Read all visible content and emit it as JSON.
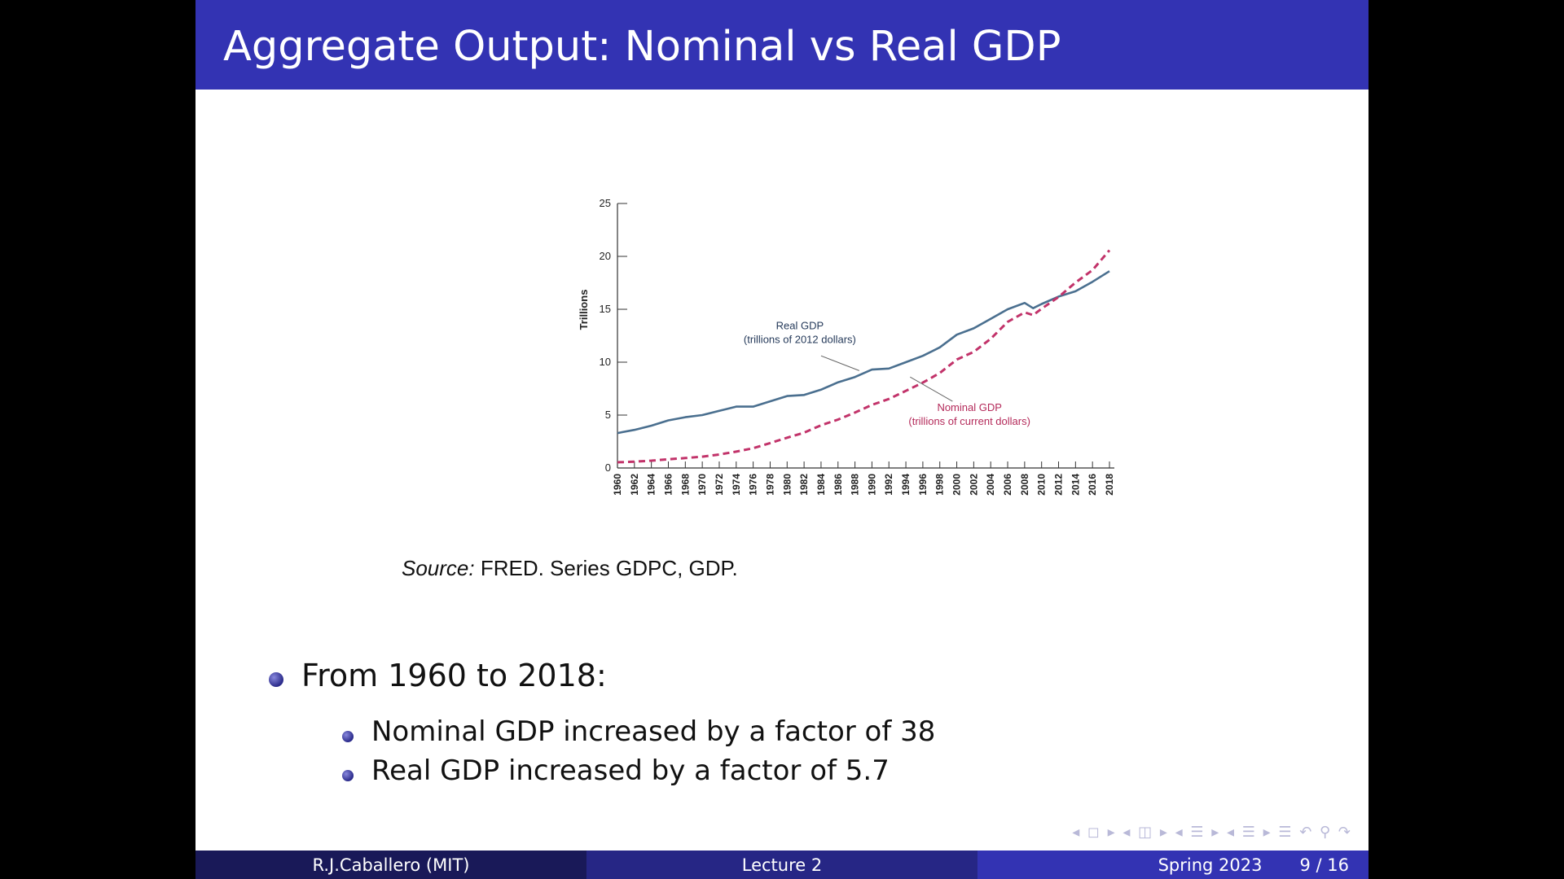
{
  "slide": {
    "title": "Aggregate Output: Nominal vs Real GDP",
    "source_label": "Source:",
    "source_text": " FRED. Series GDPC, GDP.",
    "bullets": {
      "main": "From 1960 to 2018:",
      "sub1": "Nominal GDP increased by a factor of 38",
      "sub2": "Real GDP increased by a factor of 5.7"
    }
  },
  "footer": {
    "author": "R.J.Caballero (MIT)",
    "lecture": "Lecture 2",
    "term": "Spring 2023",
    "page": "9 / 16"
  },
  "navbar": {
    "icons": "◂ ◻ ▸   ◂ ◫ ▸   ◂ ☰ ▸   ◂ ☰ ▸   ☰   ↶ ⚲ ↷"
  },
  "chart_data": {
    "type": "line",
    "ylabel": "Trillions",
    "ylim": [
      0,
      25
    ],
    "yticks": [
      0,
      5,
      10,
      15,
      20,
      25
    ],
    "xlim": [
      1960,
      2018
    ],
    "xticks": [
      1960,
      1962,
      1964,
      1966,
      1968,
      1970,
      1972,
      1974,
      1976,
      1978,
      1980,
      1982,
      1984,
      1986,
      1988,
      1990,
      1992,
      1994,
      1996,
      1998,
      2000,
      2002,
      2004,
      2006,
      2008,
      2010,
      2012,
      2014,
      2016,
      2018
    ],
    "series": [
      {
        "name": "Real GDP",
        "label_lines": [
          "Real GDP",
          "(trillions of 2012 dollars)"
        ],
        "color": "#4a6f8f",
        "style": "solid",
        "x": [
          1960,
          1962,
          1964,
          1966,
          1968,
          1970,
          1972,
          1974,
          1976,
          1978,
          1980,
          1982,
          1984,
          1986,
          1988,
          1990,
          1992,
          1994,
          1996,
          1998,
          2000,
          2002,
          2004,
          2006,
          2008,
          2009,
          2010,
          2012,
          2014,
          2016,
          2018
        ],
        "values": [
          3.3,
          3.6,
          4.0,
          4.5,
          4.8,
          5.0,
          5.4,
          5.8,
          5.8,
          6.3,
          6.8,
          6.9,
          7.4,
          8.1,
          8.6,
          9.3,
          9.4,
          10.0,
          10.6,
          11.4,
          12.6,
          13.2,
          14.1,
          15.0,
          15.6,
          15.1,
          15.5,
          16.2,
          16.7,
          17.6,
          18.6
        ]
      },
      {
        "name": "Nominal GDP",
        "label_lines": [
          "Nominal GDP",
          "(trillions of current dollars)"
        ],
        "color": "#c2336a",
        "style": "dashed",
        "x": [
          1960,
          1962,
          1964,
          1966,
          1968,
          1970,
          1972,
          1974,
          1976,
          1978,
          1980,
          1982,
          1984,
          1986,
          1988,
          1990,
          1992,
          1994,
          1996,
          1998,
          2000,
          2002,
          2004,
          2006,
          2008,
          2009,
          2010,
          2012,
          2014,
          2016,
          2018
        ],
        "values": [
          0.54,
          0.6,
          0.69,
          0.82,
          0.94,
          1.07,
          1.28,
          1.55,
          1.87,
          2.35,
          2.86,
          3.34,
          4.04,
          4.58,
          5.24,
          5.96,
          6.52,
          7.29,
          8.07,
          8.98,
          10.25,
          10.98,
          12.21,
          13.81,
          14.71,
          14.45,
          15.05,
          16.16,
          17.52,
          18.71,
          20.58
        ]
      }
    ]
  }
}
